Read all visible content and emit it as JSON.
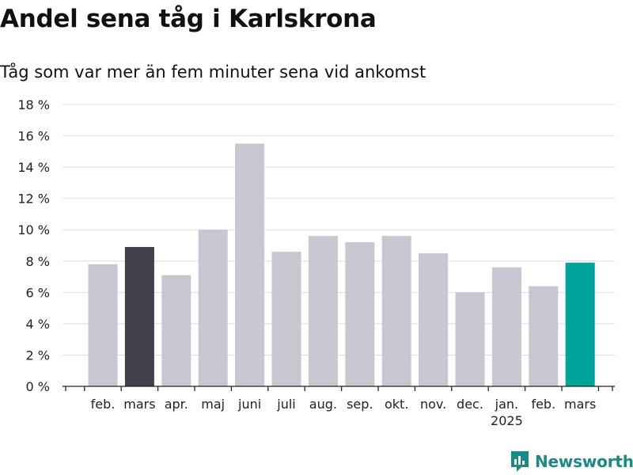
{
  "title": "Andel sena tåg i Karlskrona",
  "subtitle": "Tåg som var mer än fem minuter sena vid ankomst",
  "brand": {
    "name": "Newsworthy",
    "icon": "newsworthy-bar-chart-icon",
    "color": "#1a8a86"
  },
  "chart_data": {
    "type": "bar",
    "categories": [
      "feb.",
      "mars",
      "apr.",
      "maj",
      "juni",
      "juli",
      "aug.",
      "sep.",
      "okt.",
      "nov.",
      "dec.",
      "jan.",
      "feb.",
      "mars"
    ],
    "category_sublabels": [
      "",
      "",
      "",
      "",
      "",
      "",
      "",
      "",
      "",
      "",
      "",
      "2025",
      "",
      ""
    ],
    "values": [
      7.8,
      8.9,
      7.1,
      10.0,
      15.5,
      8.6,
      9.6,
      9.2,
      9.6,
      8.5,
      6.0,
      7.6,
      6.4,
      7.9
    ],
    "bar_colors": [
      "#c8c7d1",
      "#403f4c",
      "#c8c7d1",
      "#c8c7d1",
      "#c8c7d1",
      "#c8c7d1",
      "#c8c7d1",
      "#c8c7d1",
      "#c8c7d1",
      "#c8c7d1",
      "#c8c7d1",
      "#c8c7d1",
      "#c8c7d1",
      "#00a39a"
    ],
    "ylim": [
      0,
      18
    ],
    "yticks": [
      0,
      2,
      4,
      6,
      8,
      10,
      12,
      14,
      16,
      18
    ],
    "ytick_labels": [
      "0 %",
      "2 %",
      "4 %",
      "6 %",
      "8 %",
      "10 %",
      "12 %",
      "14 %",
      "16 %",
      "18 %"
    ],
    "grid": true
  }
}
